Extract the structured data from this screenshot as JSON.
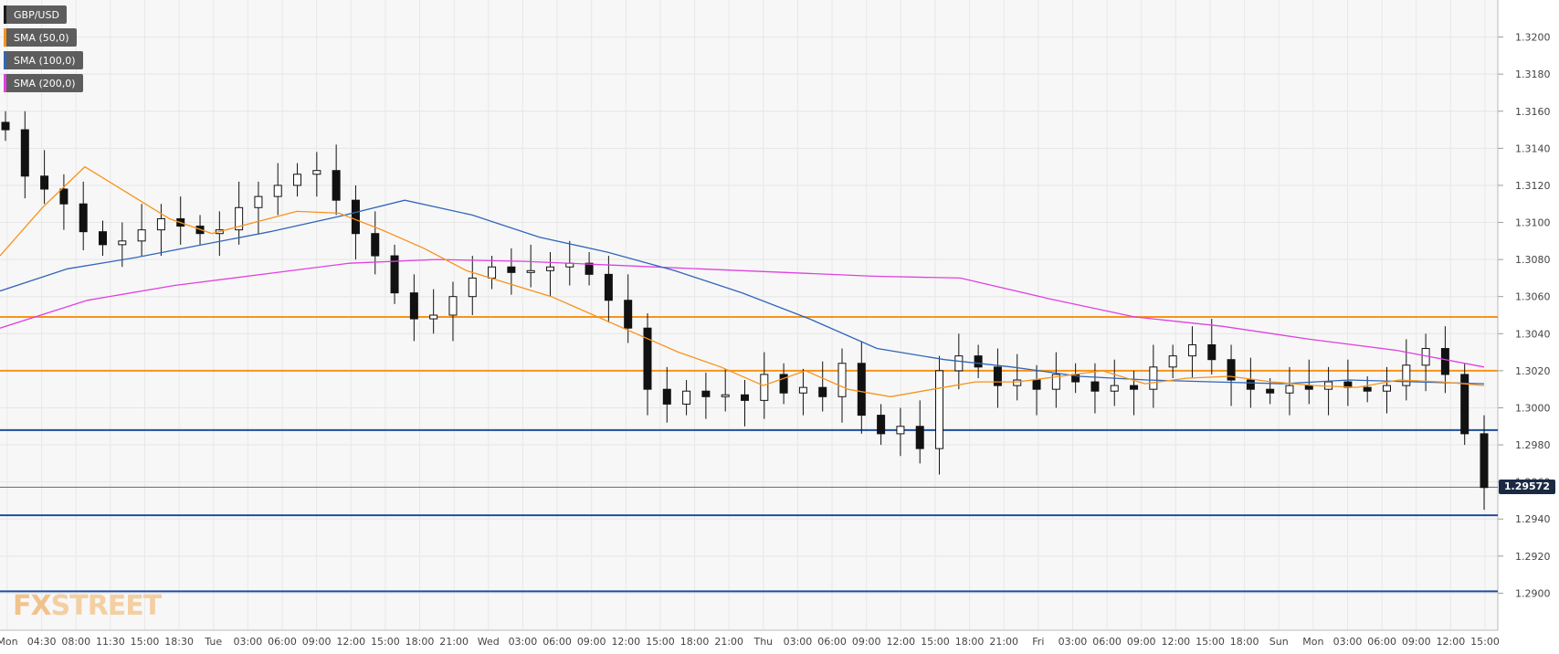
{
  "chart_data": {
    "type": "candlestick",
    "symbol": "GBP/USD",
    "indicators": [
      {
        "name": "SMA (50,0)",
        "color": "#f7931a"
      },
      {
        "name": "SMA (100,0)",
        "color": "#3166b8"
      },
      {
        "name": "SMA (200,0)",
        "color": "#e040e0"
      }
    ],
    "ylim": [
      1.288,
      1.322
    ],
    "y_ticks": [
      "1.3200",
      "1.3180",
      "1.3160",
      "1.3140",
      "1.3120",
      "1.3100",
      "1.3080",
      "1.3060",
      "1.3040",
      "1.3020",
      "1.3000",
      "1.2980",
      "1.2960",
      "1.2940",
      "1.2920",
      "1.2900"
    ],
    "x_ticks": [
      "Mon",
      "04:30",
      "08:00",
      "11:30",
      "15:00",
      "18:30",
      "Tue",
      "03:00",
      "06:00",
      "09:00",
      "12:00",
      "15:00",
      "18:00",
      "21:00",
      "Wed",
      "03:00",
      "06:00",
      "09:00",
      "12:00",
      "15:00",
      "18:00",
      "21:00",
      "Thu",
      "03:00",
      "06:00",
      "09:00",
      "12:00",
      "15:00",
      "18:00",
      "21:00",
      "Fri",
      "03:00",
      "06:00",
      "09:00",
      "12:00",
      "15:00",
      "18:00",
      "Sun",
      "Mon",
      "03:00",
      "06:00",
      "09:00",
      "12:00",
      "15:00"
    ],
    "current_price": "1.29572",
    "levels": [
      {
        "value": 1.3049,
        "color": "#f7931a"
      },
      {
        "value": 1.302,
        "color": "#f7931a"
      },
      {
        "value": 1.2988,
        "color": "#1f4e9a"
      },
      {
        "value": 1.2942,
        "color": "#1f4e9a"
      },
      {
        "value": 1.2901,
        "color": "#1f4e9a"
      }
    ],
    "close_series": [
      1.315,
      1.3125,
      1.3118,
      1.311,
      1.3095,
      1.3088,
      1.309,
      1.3096,
      1.3102,
      1.3098,
      1.3094,
      1.3096,
      1.3108,
      1.3114,
      1.312,
      1.3126,
      1.3128,
      1.3112,
      1.3094,
      1.3082,
      1.3062,
      1.3048,
      1.305,
      1.306,
      1.307,
      1.3076,
      1.3073,
      1.3074,
      1.3076,
      1.3078,
      1.3072,
      1.3058,
      1.3043,
      1.301,
      1.3002,
      1.3009,
      1.3006,
      1.3007,
      1.3004,
      1.3018,
      1.3008,
      1.3011,
      1.3006,
      1.3024,
      1.2996,
      1.2986,
      1.299,
      1.2978,
      1.302,
      1.3028,
      1.3022,
      1.3012,
      1.3015,
      1.301,
      1.3018,
      1.3014,
      1.3009,
      1.3012,
      1.301,
      1.3022,
      1.3028,
      1.3034,
      1.3026,
      1.3015,
      1.301,
      1.3008,
      1.3012,
      1.301,
      1.3014,
      1.3011,
      1.3009,
      1.3012,
      1.3023,
      1.3032,
      1.3018,
      1.2986,
      1.2957
    ],
    "sma50": [
      1.3082,
      1.3108,
      1.313,
      1.3116,
      1.3102,
      1.3094,
      1.31,
      1.3106,
      1.3105,
      1.3096,
      1.3086,
      1.3074,
      1.3067,
      1.306,
      1.305,
      1.304,
      1.303,
      1.3022,
      1.3012,
      1.302,
      1.301,
      1.3006,
      1.301,
      1.3014,
      1.3014,
      1.3017,
      1.302,
      1.3013,
      1.3016,
      1.3017,
      1.3014,
      1.3012,
      1.3011,
      1.3015,
      1.3014,
      1.3012
    ],
    "sma100": [
      1.3063,
      1.3075,
      1.3081,
      1.3088,
      1.3095,
      1.3103,
      1.3112,
      1.3104,
      1.3092,
      1.3084,
      1.3074,
      1.3062,
      1.3048,
      1.3032,
      1.3026,
      1.3022,
      1.3017,
      1.3015,
      1.3014,
      1.3013,
      1.3015,
      1.3014,
      1.3013
    ],
    "sma200": [
      1.3043,
      1.3058,
      1.3066,
      1.3072,
      1.3078,
      1.308,
      1.3079,
      1.3077,
      1.3075,
      1.3073,
      1.3071,
      1.307,
      1.3059,
      1.3049,
      1.3044,
      1.3037,
      1.3031,
      1.3022
    ]
  }
}
